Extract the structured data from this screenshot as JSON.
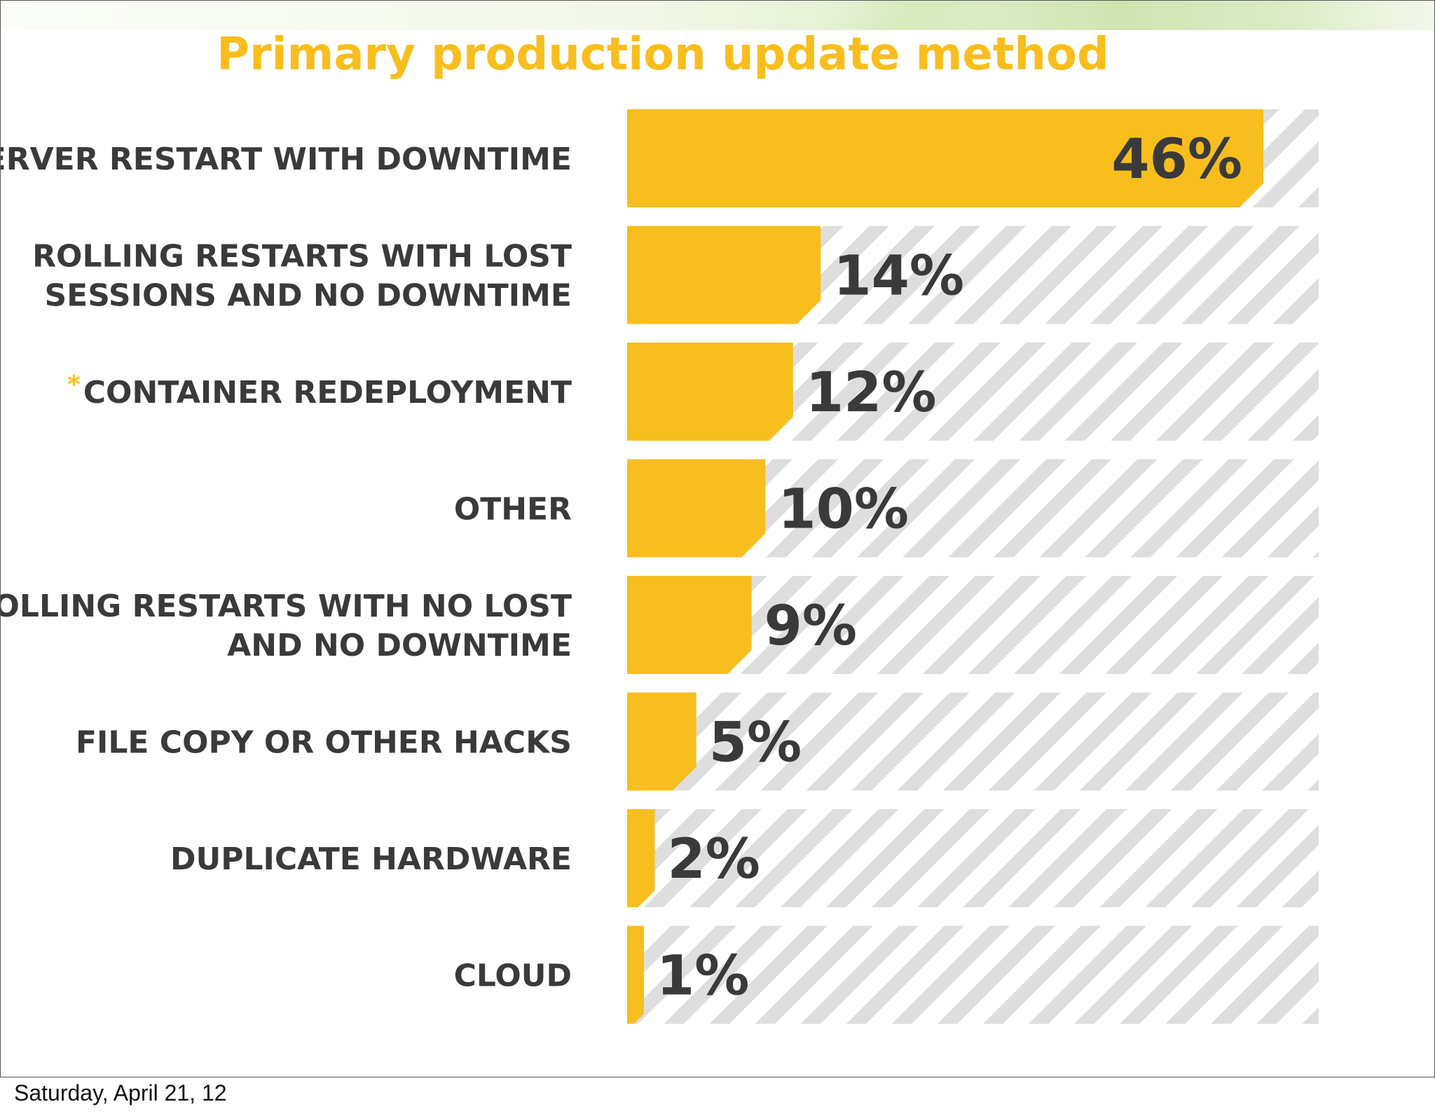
{
  "chart_data": {
    "type": "bar",
    "orientation": "horizontal",
    "title": "Primary production update method",
    "categories": [
      {
        "lines": [
          "Server restart with downtime"
        ],
        "starred": false
      },
      {
        "lines": [
          "Rolling restarts with lost",
          "sessions and no downtime"
        ],
        "starred": false
      },
      {
        "lines": [
          "Container redeployment"
        ],
        "starred": true
      },
      {
        "lines": [
          "Other"
        ],
        "starred": false
      },
      {
        "lines": [
          "Rolling restarts with no lost",
          "and no downtime"
        ],
        "starred": false
      },
      {
        "lines": [
          "File copy or other hacks"
        ],
        "starred": false
      },
      {
        "lines": [
          "Duplicate Hardware"
        ],
        "starred": false
      },
      {
        "lines": [
          "Cloud"
        ],
        "starred": false
      }
    ],
    "values": [
      46,
      14,
      12,
      10,
      9,
      5,
      2,
      1
    ],
    "value_labels": [
      "46%",
      "14%",
      "12%",
      "10%",
      "9%",
      "5%",
      "2%",
      "1%"
    ],
    "unit": "%",
    "xlim": [
      0,
      50
    ],
    "star_symbol": "*",
    "bar_color": "#f8be1e",
    "track_stripe_color": "#dedede",
    "label_color": "#3a3a3a"
  },
  "footer": {
    "date": "Saturday, April 21, 12"
  }
}
